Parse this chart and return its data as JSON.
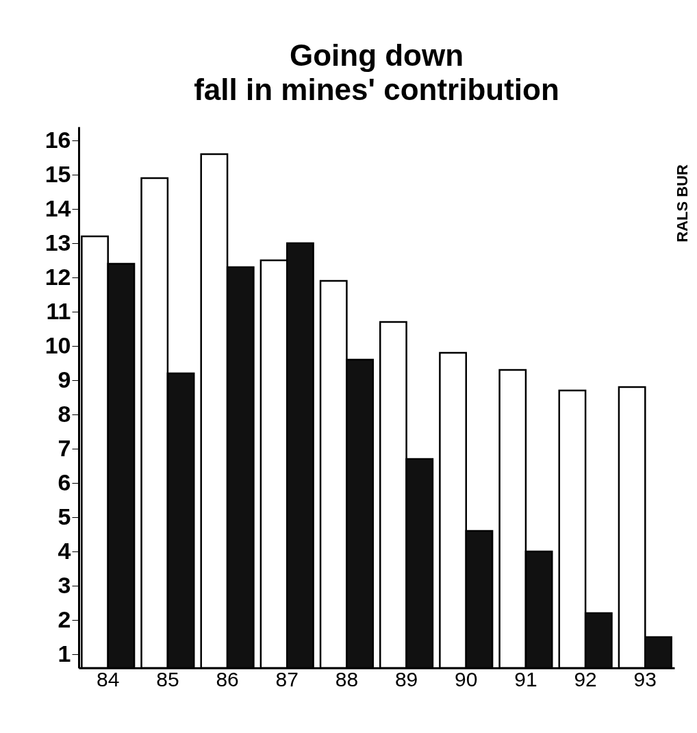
{
  "chart_data": {
    "type": "bar",
    "title": "Going down",
    "subtitle": "fall in mines' contribution",
    "categories": [
      "84",
      "85",
      "86",
      "87",
      "88",
      "89",
      "90",
      "91",
      "92",
      "93"
    ],
    "series": [
      {
        "color": "#ffffff",
        "values": [
          13.2,
          14.9,
          15.6,
          12.5,
          11.9,
          10.7,
          9.8,
          9.3,
          8.7,
          8.8
        ]
      },
      {
        "color": "#111111",
        "values": [
          12.4,
          9.2,
          12.3,
          13.0,
          9.6,
          6.7,
          4.6,
          4.0,
          2.2,
          1.5
        ]
      }
    ],
    "ylim": [
      0.6,
      16.4
    ],
    "yticks": [
      1,
      2,
      3,
      4,
      5,
      6,
      7,
      8,
      9,
      10,
      11,
      12,
      13,
      14,
      15,
      16
    ],
    "grid": false,
    "annotations": [
      "RALS BUR"
    ]
  }
}
